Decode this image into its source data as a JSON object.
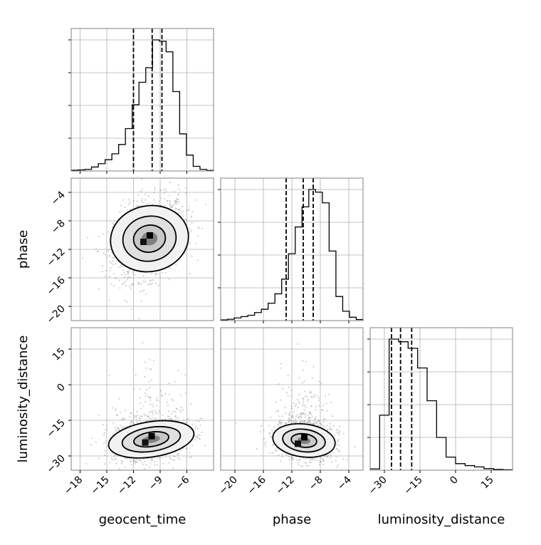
{
  "chart_data": {
    "type": "corner",
    "parameters": [
      "geocent_time",
      "phase",
      "luminosity_distance"
    ],
    "ranges": {
      "geocent_time": [
        -19,
        -3
      ],
      "phase": [
        -22,
        -2
      ],
      "luminosity_distance": [
        -36,
        24
      ]
    },
    "ticks": {
      "geocent_time": [
        -18,
        -15,
        -12,
        -9,
        -6
      ],
      "phase": [
        -20,
        -16,
        -12,
        -8,
        -4
      ],
      "luminosity_distance": [
        -30,
        -15,
        0,
        15
      ]
    },
    "tick_labels": {
      "geocent_time": [
        "−18",
        "−15",
        "−12",
        "−9",
        "−6"
      ],
      "phase": [
        "−20",
        "−16",
        "−12",
        "−8",
        "−4"
      ],
      "luminosity_distance": [
        "−30",
        "−15",
        "0",
        "15"
      ]
    },
    "quantiles": {
      "geocent_time": [
        -12.0,
        -9.9,
        -8.8
      ],
      "phase": [
        -12.8,
        -10.4,
        -9.0
      ],
      "luminosity_distance": [
        -27.0,
        -23.2,
        -18.5
      ]
    },
    "histograms": {
      "geocent_time": [
        0.005,
        0.008,
        0.012,
        0.03,
        0.055,
        0.085,
        0.13,
        0.2,
        0.32,
        0.5,
        0.67,
        0.78,
        0.99,
        0.98,
        0.9,
        0.6,
        0.28,
        0.12,
        0.035,
        0.012,
        0.004
      ],
      "phase": [
        0.005,
        0.01,
        0.02,
        0.03,
        0.04,
        0.06,
        0.085,
        0.13,
        0.2,
        0.31,
        0.5,
        0.7,
        0.85,
        0.98,
        0.96,
        0.88,
        0.52,
        0.18,
        0.07,
        0.025,
        0.008
      ],
      "luminosity_distance": [
        0.01,
        0.42,
        1.0,
        0.98,
        0.93,
        0.78,
        0.53,
        0.25,
        0.1,
        0.05,
        0.035,
        0.025,
        0.012,
        0.006,
        0.003
      ]
    },
    "hist_bins": {
      "geocent_time": [
        -19,
        -3
      ],
      "phase": [
        -22,
        -2
      ],
      "luminosity_distance": [
        -36,
        24
      ]
    },
    "joint_posteriors": [
      {
        "x": "geocent_time",
        "y": "phase",
        "center": [
          -10.2,
          -10.5
        ],
        "spread": [
          2.0,
          2.8
        ],
        "correlation": 0.3
      },
      {
        "x": "geocent_time",
        "y": "luminosity_distance",
        "center": [
          -10.0,
          -23.0
        ],
        "spread": [
          2.2,
          4.5
        ],
        "correlation": 0.25
      },
      {
        "x": "phase",
        "y": "luminosity_distance",
        "center": [
          -10.3,
          -23.5
        ],
        "spread": [
          2.0,
          4.2
        ],
        "correlation": -0.2
      }
    ]
  }
}
